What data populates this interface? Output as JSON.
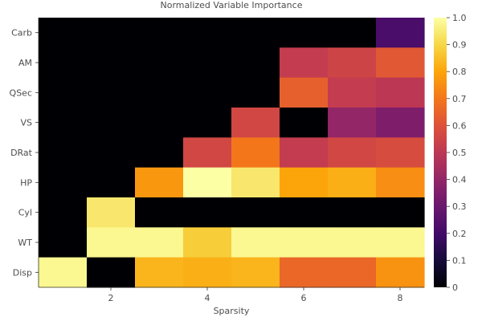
{
  "chart_data": {
    "type": "heatmap",
    "title": "Normalized Variable Importance",
    "xlabel": "Sparsity",
    "ylabel": "",
    "x_values": [
      1,
      2,
      3,
      4,
      5,
      6,
      7,
      8
    ],
    "x_ticks": [
      2,
      4,
      6,
      8
    ],
    "rows": [
      "Carb",
      "AM",
      "QSec",
      "VS",
      "DRat",
      "HP",
      "Cyl",
      "WT",
      "Disp"
    ],
    "values": [
      [
        0.0,
        0.0,
        0.0,
        0.0,
        0.0,
        0.0,
        0.0,
        0.22
      ],
      [
        0.0,
        0.0,
        0.0,
        0.0,
        0.0,
        0.52,
        0.55,
        0.62
      ],
      [
        0.0,
        0.0,
        0.0,
        0.0,
        0.0,
        0.64,
        0.52,
        0.5
      ],
      [
        0.0,
        0.0,
        0.0,
        0.0,
        0.56,
        0.0,
        0.4,
        0.35
      ],
      [
        0.0,
        0.0,
        0.0,
        0.56,
        0.7,
        0.52,
        0.56,
        0.58
      ],
      [
        0.0,
        0.0,
        0.77,
        1.0,
        0.94,
        0.8,
        0.82,
        0.75
      ],
      [
        0.0,
        0.94,
        0.0,
        0.0,
        0.0,
        0.0,
        0.0,
        0.0
      ],
      [
        0.0,
        0.98,
        0.98,
        0.88,
        0.98,
        0.98,
        0.98,
        0.98
      ],
      [
        0.98,
        0.0,
        0.83,
        0.82,
        0.83,
        0.66,
        0.66,
        0.76
      ]
    ],
    "colorbar": {
      "colormap": "inferno",
      "min": 0,
      "max": 1,
      "ticks": [
        "0",
        "0.1",
        "0.2",
        "0.3",
        "0.4",
        "0.5",
        "0.6",
        "0.7",
        "0.8",
        "0.9",
        "1.0"
      ]
    },
    "grid": false,
    "legend": "colorbar-right"
  }
}
